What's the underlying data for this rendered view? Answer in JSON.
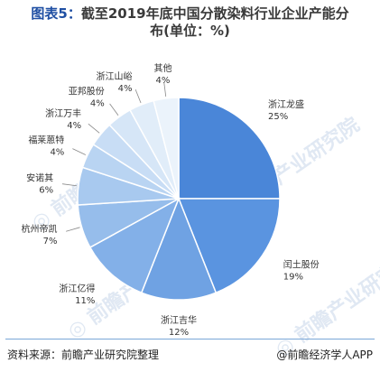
{
  "title": {
    "prefix": "图表5：",
    "line1": "截至2019年底中国分散染料行业企业产能分",
    "line2": "布(单位：%)"
  },
  "footer": {
    "source": "资料来源：前瞻产业研究院整理",
    "brand": "@前瞻经济学人APP"
  },
  "chart_data": {
    "type": "pie",
    "title": "截至2019年底中国分散染料行业企业产能分布(单位：%)",
    "slices": [
      {
        "label": "浙江龙盛",
        "value": 25,
        "color": "#4a86d8"
      },
      {
        "label": "闰土股份",
        "value": 19,
        "color": "#5a94e0"
      },
      {
        "label": "浙江吉华",
        "value": 12,
        "color": "#6fa2e3"
      },
      {
        "label": "浙江亿得",
        "value": 11,
        "color": "#83b0e8"
      },
      {
        "label": "杭州帝凯",
        "value": 7,
        "color": "#96bdeb"
      },
      {
        "label": "安诺其",
        "value": 6,
        "color": "#a8c9ef"
      },
      {
        "label": "福莱蒽特",
        "value": 4,
        "color": "#b9d4f2"
      },
      {
        "label": "浙江万丰",
        "value": 4,
        "color": "#c8ddf5"
      },
      {
        "label": "亚邦股份",
        "value": 4,
        "color": "#d6e6f7"
      },
      {
        "label": "浙江山峪",
        "value": 4,
        "color": "#e1edf9"
      },
      {
        "label": "其他",
        "value": 4,
        "color": "#ebf3fb"
      }
    ]
  }
}
